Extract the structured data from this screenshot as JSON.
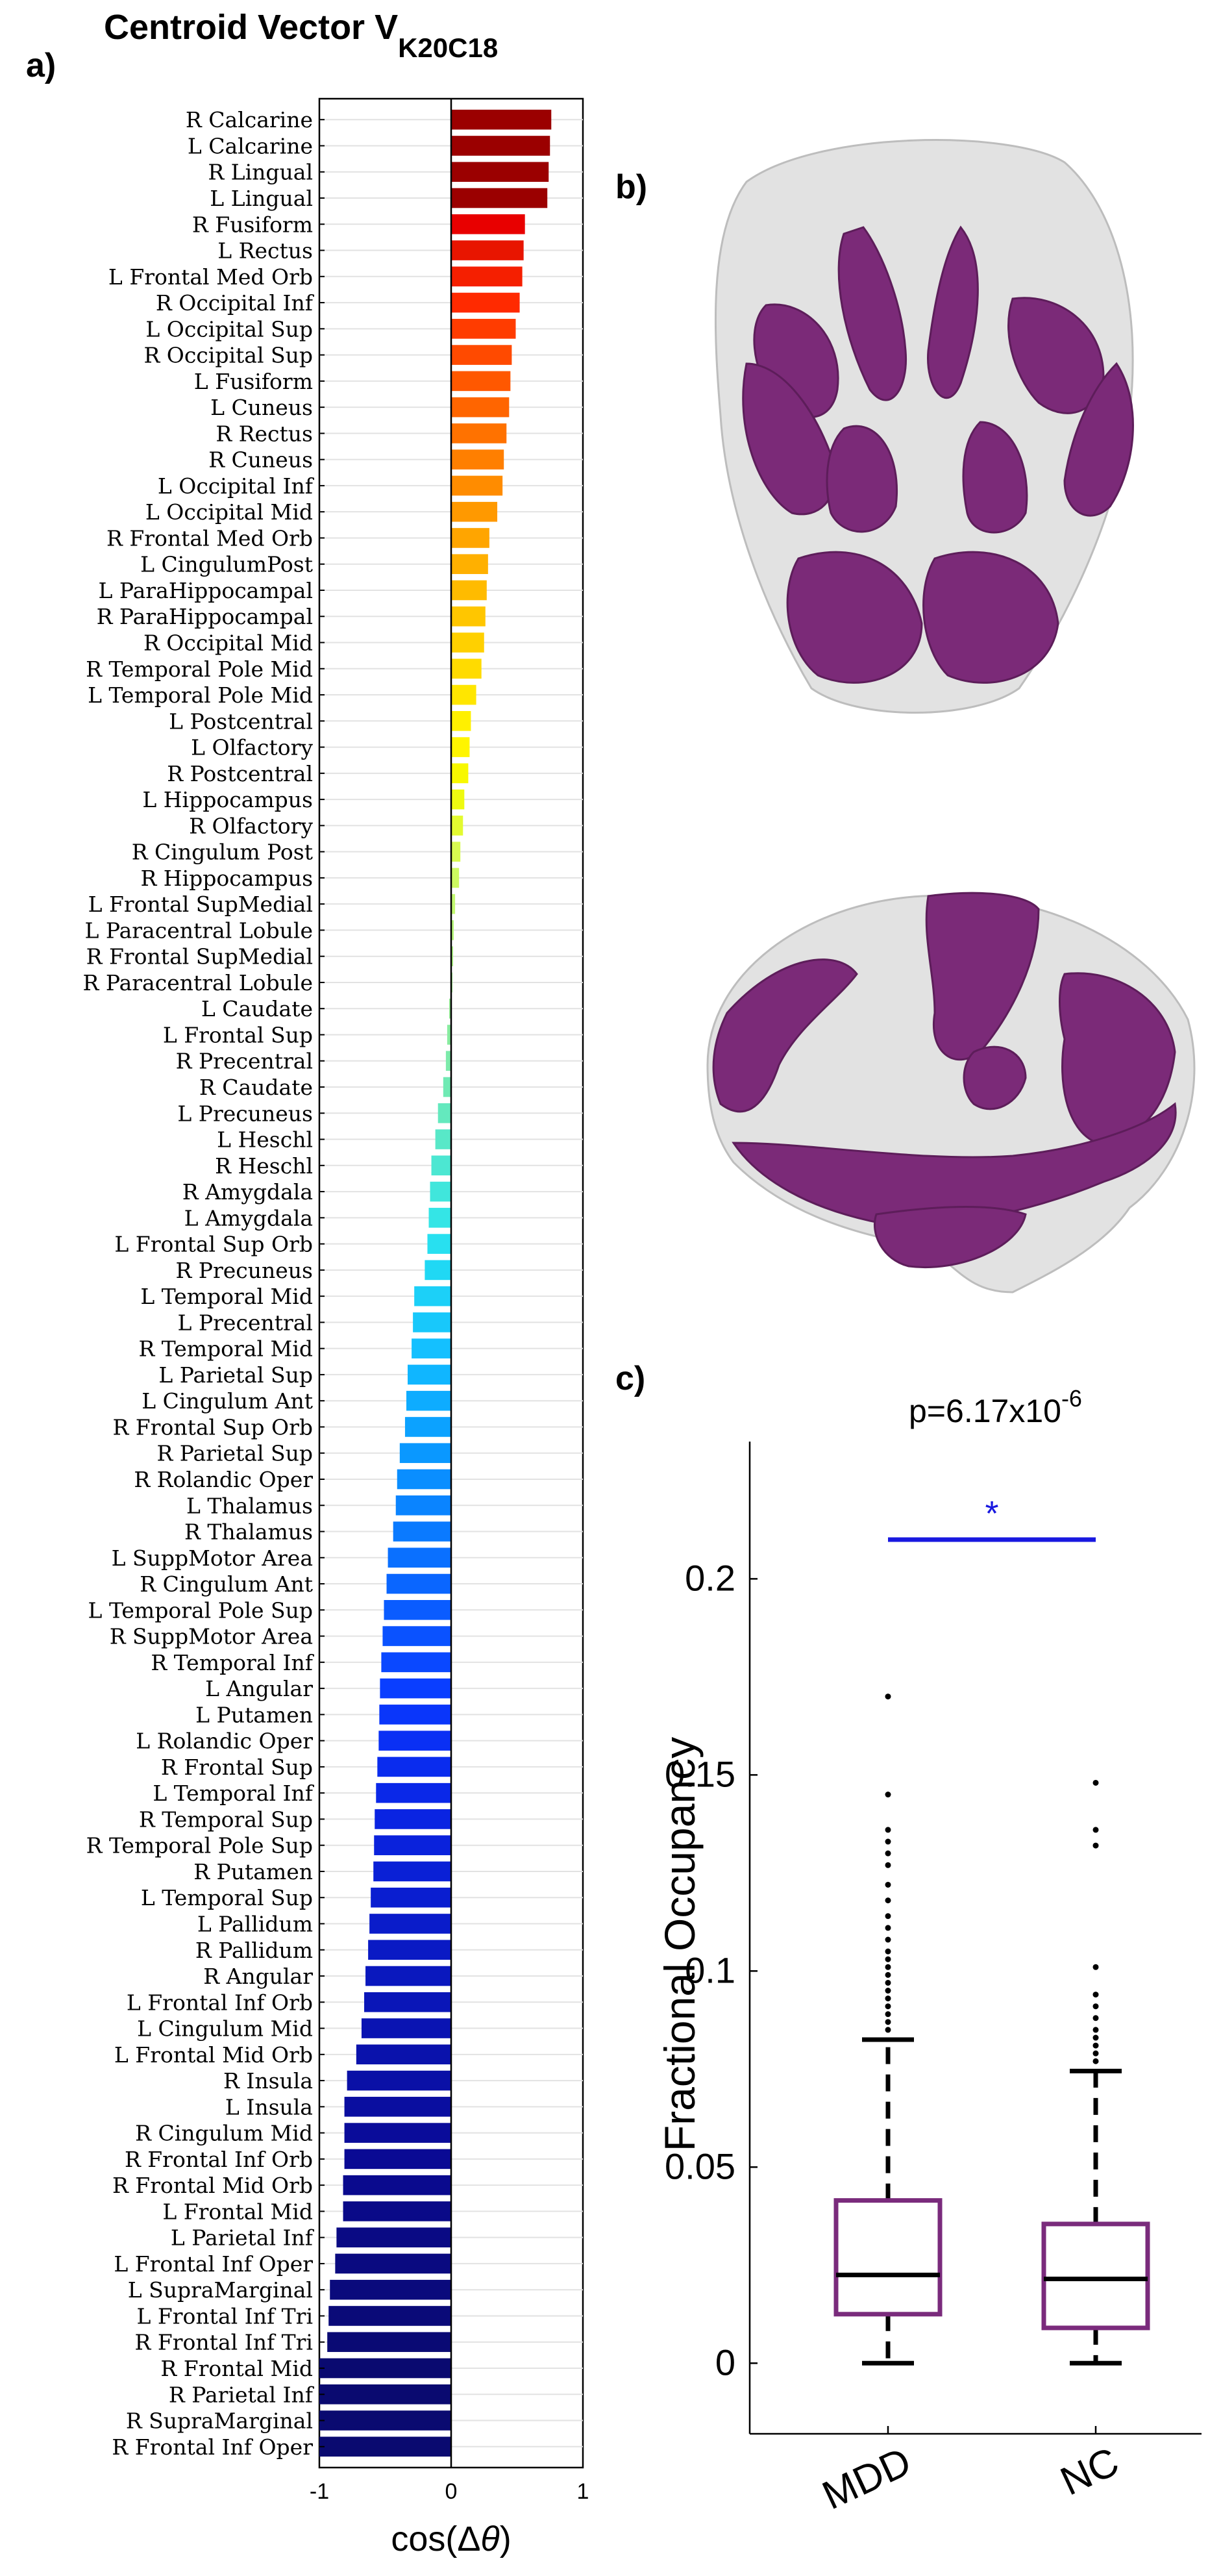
{
  "panels": {
    "a": "a)",
    "b": "b)",
    "c": "c)"
  },
  "title": {
    "text": "Centroid Vector V",
    "subscript": "K20C18"
  },
  "chart_data": [
    {
      "type": "bar",
      "orientation": "horizontal",
      "title": "Centroid Vector V_K20C18",
      "xlabel": "cos(Δθ)",
      "xlabel_main": "cos(Δ",
      "xlabel_theta": "θ",
      "xlabel_end": ")",
      "xlim": [
        -1,
        1
      ],
      "xticks": [
        -1,
        0,
        1
      ],
      "xtick_labels": [
        "-1",
        "0",
        "1"
      ],
      "categories": [
        "R Calcarine",
        "L Calcarine",
        "R Lingual",
        "L Lingual",
        "R Fusiform",
        "L Rectus",
        "L Frontal Med Orb",
        "R Occipital Inf",
        "L Occipital Sup",
        "R Occipital Sup",
        "L Fusiform",
        "L Cuneus",
        "R Rectus",
        "R Cuneus",
        "L Occipital Inf",
        "L Occipital Mid",
        "R Frontal Med Orb",
        "L CingulumPost",
        "L ParaHippocampal",
        "R ParaHippocampal",
        "R Occipital Mid",
        "R Temporal Pole Mid",
        "L Temporal Pole Mid",
        "L Postcentral",
        "L Olfactory",
        "R Postcentral",
        "L Hippocampus",
        "R Olfactory",
        "R Cingulum Post",
        "R Hippocampus",
        "L Frontal SupMedial",
        "L Paracentral Lobule",
        "R Frontal SupMedial",
        "R Paracentral Lobule",
        "L Caudate",
        "L Frontal Sup",
        "R Precentral",
        "R Caudate",
        "L Precuneus",
        "L Heschl",
        "R Heschl",
        "R Amygdala",
        "L Amygdala",
        "L Frontal Sup Orb",
        "R Precuneus",
        "L Temporal Mid",
        "L Precentral",
        "R Temporal Mid",
        "L Parietal Sup",
        "L Cingulum Ant",
        "R Frontal Sup Orb",
        "R Parietal Sup",
        "R Rolandic Oper",
        "L Thalamus",
        "R Thalamus",
        "L SuppMotor Area",
        "R Cingulum Ant",
        "L Temporal Pole Sup",
        "R SuppMotor Area",
        "R Temporal Inf",
        "L Angular",
        "L Putamen",
        "L Rolandic Oper",
        "R Frontal Sup",
        "L Temporal Inf",
        "R Temporal Sup",
        "R Temporal Pole Sup",
        "R Putamen",
        "L Temporal Sup",
        "L Pallidum",
        "R Pallidum",
        "R Angular",
        "L Frontal Inf Orb",
        "L Cingulum Mid",
        "L Frontal Mid Orb",
        "R Insula",
        "L Insula",
        "R Cingulum Mid",
        "R Frontal Inf Orb",
        "R Frontal Mid Orb",
        "L Frontal Mid",
        "L Parietal Inf",
        "L Frontal Inf Oper",
        "L SupraMarginal",
        "L Frontal Inf Tri",
        "R Frontal Inf Tri",
        "R Frontal Mid",
        "R Parietal Inf",
        "R SupraMarginal",
        "R Frontal Inf Oper"
      ],
      "values": [
        0.76,
        0.75,
        0.74,
        0.73,
        0.56,
        0.55,
        0.54,
        0.52,
        0.49,
        0.46,
        0.45,
        0.44,
        0.42,
        0.4,
        0.39,
        0.35,
        0.29,
        0.28,
        0.27,
        0.26,
        0.25,
        0.23,
        0.19,
        0.15,
        0.14,
        0.13,
        0.1,
        0.09,
        0.07,
        0.06,
        0.03,
        0.02,
        0.015,
        0.01,
        -0.015,
        -0.03,
        -0.04,
        -0.06,
        -0.1,
        -0.12,
        -0.15,
        -0.16,
        -0.17,
        -0.18,
        -0.2,
        -0.28,
        -0.29,
        -0.3,
        -0.33,
        -0.34,
        -0.35,
        -0.39,
        -0.41,
        -0.42,
        -0.44,
        -0.48,
        -0.49,
        -0.51,
        -0.52,
        -0.53,
        -0.54,
        -0.545,
        -0.55,
        -0.56,
        -0.57,
        -0.58,
        -0.585,
        -0.59,
        -0.61,
        -0.62,
        -0.63,
        -0.65,
        -0.66,
        -0.68,
        -0.72,
        -0.79,
        -0.81,
        -0.81,
        -0.81,
        -0.82,
        -0.82,
        -0.87,
        -0.88,
        -0.92,
        -0.93,
        -0.94,
        -1.0,
        -1.0,
        -1.0,
        -1.0
      ],
      "colors": [
        "#9b0000",
        "#9b0000",
        "#9b0000",
        "#9b0000",
        "#e80000",
        "#e81500",
        "#f51f00",
        "#ff2a00",
        "#ff3c00",
        "#ff4a00",
        "#ff5800",
        "#ff6500",
        "#ff7200",
        "#ff7f00",
        "#ff8c00",
        "#ff9900",
        "#ffa500",
        "#ffb000",
        "#ffbb00",
        "#ffc600",
        "#ffd000",
        "#ffdb00",
        "#ffe600",
        "#fff000",
        "#fff500",
        "#f8f800",
        "#eefa10",
        "#e3fa30",
        "#d8fa50",
        "#cdfa60",
        "#c2f870",
        "#b7f67a",
        "#acf383",
        "#a0f08c",
        "#94ee96",
        "#88eca0",
        "#7cebaa",
        "#70eab4",
        "#64e9be",
        "#58e8c8",
        "#4ce7d2",
        "#40e6dc",
        "#34e5e6",
        "#28e0f0",
        "#20d8f4",
        "#1cd0f8",
        "#18c8fb",
        "#14c0ff",
        "#10b6ff",
        "#0eacff",
        "#0ca2ff",
        "#0a98ff",
        "#0a8eff",
        "#0a84ff",
        "#0a7aff",
        "#0a70ff",
        "#0a66ff",
        "#0a5cff",
        "#0a52ff",
        "#0a48ff",
        "#0a3eff",
        "#0a36fa",
        "#0a30f4",
        "#0a2cee",
        "#0a28e8",
        "#0a24e2",
        "#0a22dc",
        "#0a20d6",
        "#0a1ed0",
        "#0a1cca",
        "#0a1ac4",
        "#0a18be",
        "#0a16b8",
        "#0a14b2",
        "#0a12ac",
        "#0a10a6",
        "#0a0ea0",
        "#0a0c9a",
        "#0a0a94",
        "#0a0a8e",
        "#0a0a88",
        "#0a0a84",
        "#0a0a80",
        "#0a0a7c",
        "#0a0a78",
        "#0a0a74",
        "#0a0a70",
        "#0a0a70",
        "#0a0a70",
        "#0a0a70"
      ]
    },
    {
      "type": "box",
      "title": "",
      "annotation": "p=6.17x10",
      "annotation_exponent": "-6",
      "significance_mark": "*",
      "ylabel": "Fractional Occupancy",
      "ylim": [
        -0.018,
        0.235
      ],
      "yticks": [
        0,
        0.05,
        0.1,
        0.15,
        0.2
      ],
      "ytick_labels": [
        "0",
        "0.05",
        "0.1",
        "0.15",
        "0.2"
      ],
      "categories": [
        "MDD",
        "NC"
      ],
      "series": [
        {
          "name": "MDD",
          "q1": 0.0125,
          "median": 0.0225,
          "q3": 0.0415,
          "whisker_low": 0,
          "whisker_high": 0.0825,
          "outliers": [
            0.085,
            0.087,
            0.089,
            0.091,
            0.093,
            0.095,
            0.097,
            0.099,
            0.101,
            0.103,
            0.105,
            0.108,
            0.111,
            0.114,
            0.118,
            0.122,
            0.127,
            0.13,
            0.133,
            0.136,
            0.145,
            0.17
          ]
        },
        {
          "name": "NC",
          "q1": 0.009,
          "median": 0.0215,
          "q3": 0.0355,
          "whisker_low": 0,
          "whisker_high": 0.0745,
          "outliers": [
            0.077,
            0.079,
            0.081,
            0.083,
            0.085,
            0.088,
            0.091,
            0.094,
            0.101,
            0.132,
            0.136,
            0.148
          ]
        }
      ],
      "significance_line_y": 0.21,
      "box_color": "#7a2b7c",
      "significance_color": "#1818e0"
    }
  ],
  "brain_renders": {
    "top_view": "brain-render-axial",
    "side_view": "brain-render-sagittal",
    "highlight_color": "#7b2a78",
    "shell_color": "#d6d6d6"
  }
}
